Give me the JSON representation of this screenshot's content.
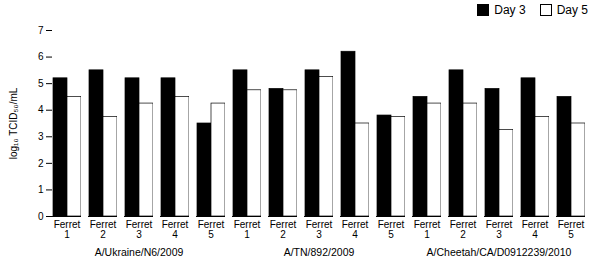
{
  "chart_data": {
    "type": "bar",
    "ylabel": "log₁₀ TCID₅₀/mL",
    "categories": [
      "Ferret\n1",
      "Ferret\n2",
      "Ferret\n3",
      "Ferret\n4",
      "Ferret\n5",
      "Ferret\n1",
      "Ferret\n2",
      "Ferret\n3",
      "Ferret\n4",
      "Ferret\n5",
      "Ferret\n1",
      "Ferret\n2",
      "Ferret\n3",
      "Ferret\n4",
      "Ferret\n5"
    ],
    "groups": [
      "A/Ukraine/N6/2009",
      "A/TN/892/2009",
      "A/Cheetah/CA/D0912239/2010"
    ],
    "series": [
      {
        "name": "Day 3",
        "color": "#000000",
        "values": [
          5.2,
          5.5,
          5.2,
          5.2,
          3.5,
          5.5,
          4.8,
          5.5,
          6.2,
          3.8,
          4.5,
          5.5,
          4.8,
          5.2,
          4.5
        ]
      },
      {
        "name": "Day 5",
        "color": "#ffffff",
        "values": [
          4.5,
          3.75,
          4.25,
          4.5,
          4.25,
          4.75,
          4.75,
          5.25,
          3.5,
          3.75,
          4.25,
          4.25,
          3.25,
          3.75,
          3.5
        ]
      }
    ],
    "ylim": [
      0,
      7
    ],
    "yticks": [
      0,
      1,
      2,
      3,
      4,
      5,
      6,
      7
    ],
    "legend": "upper right",
    "grid": false
  }
}
